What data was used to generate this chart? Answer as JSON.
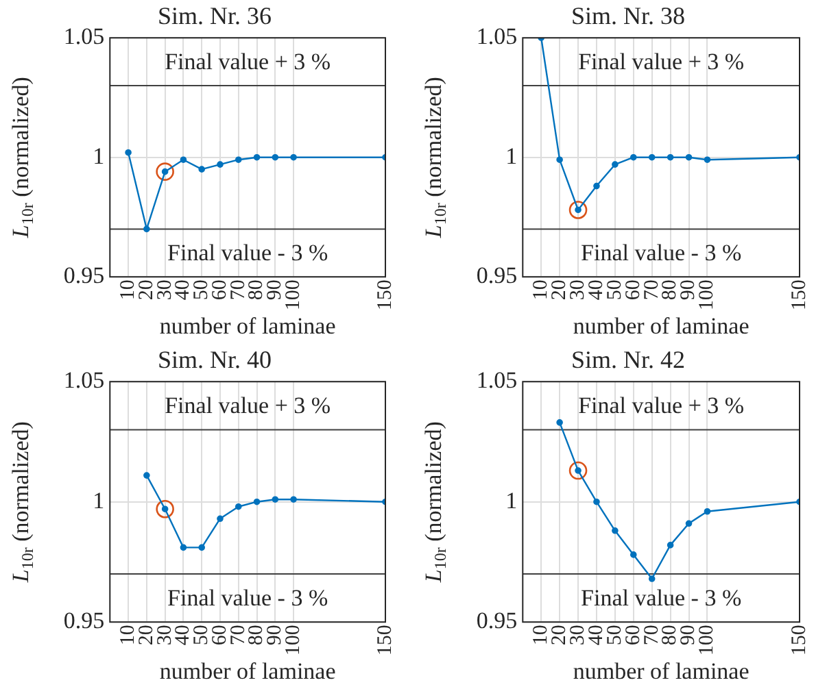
{
  "chart_data": [
    {
      "type": "line",
      "title": "Sim. Nr. 36",
      "xlabel": "number of laminae",
      "ylabel": "L$_{10r}$ (normalized)",
      "x": [
        10,
        20,
        30,
        40,
        50,
        60,
        70,
        80,
        90,
        100,
        150
      ],
      "marker": "circle",
      "grid": true,
      "series": [
        {
          "color": "#0072bd",
          "values": [
            1.002,
            0.97,
            0.994,
            0.999,
            0.995,
            0.997,
            0.999,
            1.0,
            1.0,
            1.0,
            1.0
          ]
        },
        {
          "type": "scatter",
          "color": "#d95319",
          "x": [
            30
          ],
          "values": [
            0.994
          ]
        }
      ],
      "xlim": [
        0,
        150
      ],
      "xticks": [
        10,
        20,
        30,
        40,
        50,
        60,
        70,
        80,
        90,
        100,
        150
      ],
      "ylim": [
        0.95,
        1.05
      ],
      "yticks": [
        0.95,
        1,
        1.05
      ],
      "ref_lines": [
        {
          "axis": "y",
          "value": 1.03,
          "label": "Final value + 3 %",
          "color": "#404040"
        },
        {
          "axis": "y",
          "value": 0.97,
          "label": "Final value - 3 %",
          "color": "#404040"
        }
      ]
    },
    {
      "type": "line",
      "title": "Sim. Nr. 38",
      "xlabel": "number of laminae",
      "ylabel": "L$_{10r}$ (normalized)",
      "x": [
        10,
        20,
        30,
        40,
        50,
        60,
        70,
        80,
        90,
        100,
        150
      ],
      "marker": "circle",
      "grid": true,
      "series": [
        {
          "color": "#0072bd",
          "values": [
            1.05,
            0.999,
            0.978,
            0.988,
            0.997,
            1.0,
            1.0,
            1.0,
            1.0,
            0.999,
            1.0
          ]
        },
        {
          "type": "scatter",
          "color": "#d95319",
          "x": [
            30
          ],
          "values": [
            0.978
          ]
        }
      ],
      "xlim": [
        0,
        150
      ],
      "xticks": [
        10,
        20,
        30,
        40,
        50,
        60,
        70,
        80,
        90,
        100,
        150
      ],
      "ylim": [
        0.95,
        1.05
      ],
      "yticks": [
        0.95,
        1,
        1.05
      ],
      "ref_lines": [
        {
          "axis": "y",
          "value": 1.03,
          "label": "Final value + 3 %",
          "color": "#404040"
        },
        {
          "axis": "y",
          "value": 0.97,
          "label": "Final value - 3 %",
          "color": "#404040"
        }
      ]
    },
    {
      "type": "line",
      "title": "Sim. Nr. 40",
      "xlabel": "number of laminae",
      "ylabel": "L$_{10r}$ (normalized)",
      "marker": "circle",
      "grid": true,
      "series": [
        {
          "color": "#0072bd",
          "x": [
            20,
            30,
            40,
            50,
            60,
            70,
            80,
            90,
            100,
            150
          ],
          "values": [
            1.011,
            0.997,
            0.981,
            0.981,
            0.993,
            0.998,
            1.0,
            1.001,
            1.001,
            1.0
          ]
        },
        {
          "type": "scatter",
          "color": "#d95319",
          "x": [
            30
          ],
          "values": [
            0.997
          ]
        }
      ],
      "xlim": [
        0,
        150
      ],
      "xticks": [
        10,
        20,
        30,
        40,
        50,
        60,
        70,
        80,
        90,
        100,
        150
      ],
      "ylim": [
        0.95,
        1.05
      ],
      "yticks": [
        0.95,
        1,
        1.05
      ],
      "ref_lines": [
        {
          "axis": "y",
          "value": 1.03,
          "label": "Final value + 3 %",
          "color": "#404040"
        },
        {
          "axis": "y",
          "value": 0.97,
          "label": "Final value - 3 %",
          "color": "#404040"
        }
      ]
    },
    {
      "type": "line",
      "title": "Sim. Nr. 42",
      "xlabel": "number of laminae",
      "ylabel": "L$_{10r}$ (normalized)",
      "marker": "circle",
      "grid": true,
      "series": [
        {
          "color": "#0072bd",
          "x": [
            20,
            30,
            40,
            50,
            60,
            70,
            80,
            90,
            100,
            150
          ],
          "values": [
            1.033,
            1.013,
            1.0,
            0.988,
            0.978,
            0.968,
            0.982,
            0.991,
            0.996,
            1.0
          ]
        },
        {
          "type": "scatter",
          "color": "#d95319",
          "x": [
            30
          ],
          "values": [
            1.013
          ]
        }
      ],
      "xlim": [
        0,
        150
      ],
      "xticks": [
        10,
        20,
        30,
        40,
        50,
        60,
        70,
        80,
        90,
        100,
        150
      ],
      "ylim": [
        0.95,
        1.05
      ],
      "yticks": [
        0.95,
        1,
        1.05
      ],
      "ref_lines": [
        {
          "axis": "y",
          "value": 1.03,
          "label": "Final value + 3 %",
          "color": "#404040"
        },
        {
          "axis": "y",
          "value": 0.97,
          "label": "Final value - 3 %",
          "color": "#404040"
        }
      ]
    }
  ]
}
